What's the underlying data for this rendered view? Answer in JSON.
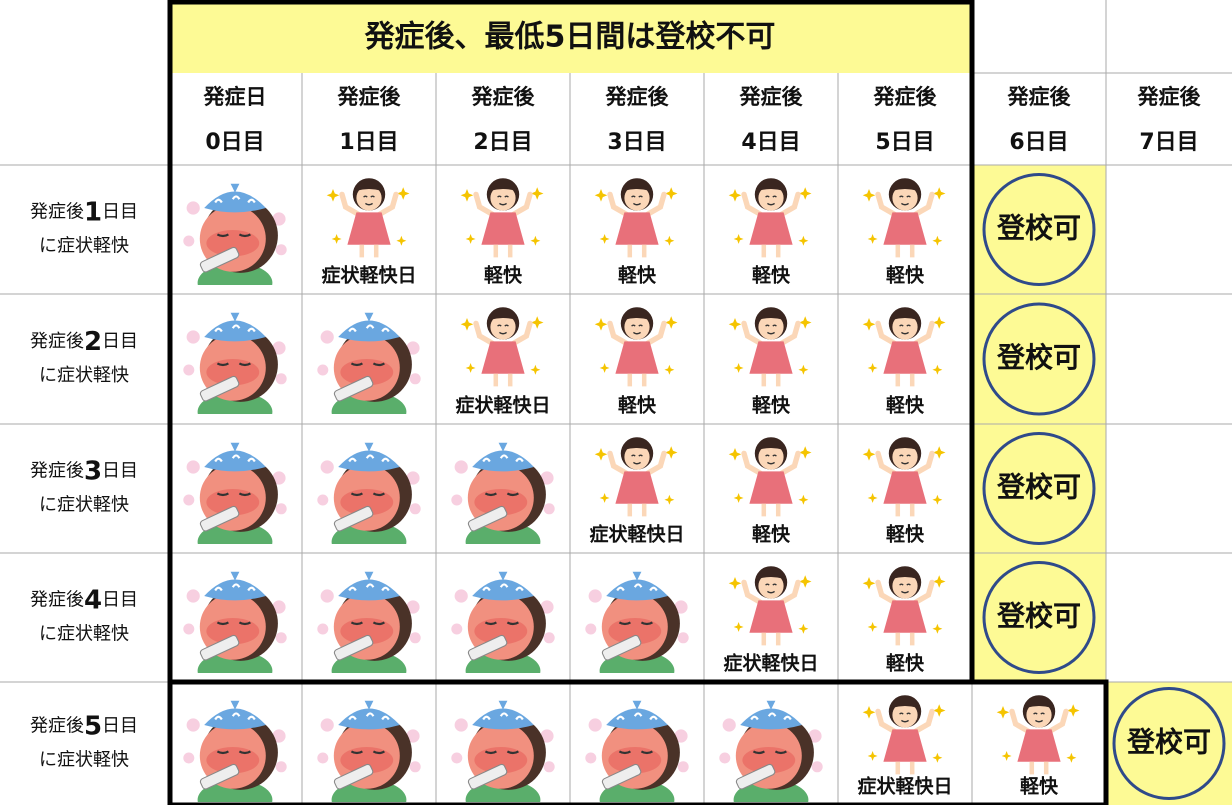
{
  "header": {
    "banner": "発症後、最低5日間は登校不可"
  },
  "columns": [
    {
      "top": "発症日",
      "bottom": "0日目"
    },
    {
      "top": "発症後",
      "bottom": "1日目"
    },
    {
      "top": "発症後",
      "bottom": "2日目"
    },
    {
      "top": "発症後",
      "bottom": "3日目"
    },
    {
      "top": "発症後",
      "bottom": "4日目"
    },
    {
      "top": "発症後",
      "bottom": "5日目"
    },
    {
      "top": "発症後",
      "bottom": "6日目"
    },
    {
      "top": "発症後",
      "bottom": "7日目"
    }
  ],
  "rows": [
    {
      "prefix": "発症後",
      "number": "1",
      "suffix": "日目",
      "line2": "に症状軽快",
      "days": [
        null,
        "症状軽快日",
        "軽快",
        "軽快",
        "軽快",
        "軽快"
      ],
      "return": "登校可"
    },
    {
      "prefix": "発症後",
      "number": "2",
      "suffix": "日目",
      "line2": "に症状軽快",
      "days": [
        null,
        null,
        "症状軽快日",
        "軽快",
        "軽快",
        "軽快"
      ],
      "return": "登校可"
    },
    {
      "prefix": "発症後",
      "number": "3",
      "suffix": "日目",
      "line2": "に症状軽快",
      "days": [
        null,
        null,
        null,
        "症状軽快日",
        "軽快",
        "軽快"
      ],
      "return": "登校可"
    },
    {
      "prefix": "発症後",
      "number": "4",
      "suffix": "日目",
      "line2": "に症状軽快",
      "days": [
        null,
        null,
        null,
        null,
        "症状軽快日",
        "軽快"
      ],
      "return": "登校可"
    },
    {
      "prefix": "発症後",
      "number": "5",
      "suffix": "日目",
      "line2": "に症状軽快",
      "days": [
        null,
        null,
        null,
        null,
        null,
        "症状軽快日",
        "軽快"
      ],
      "return": "登校可"
    }
  ]
}
